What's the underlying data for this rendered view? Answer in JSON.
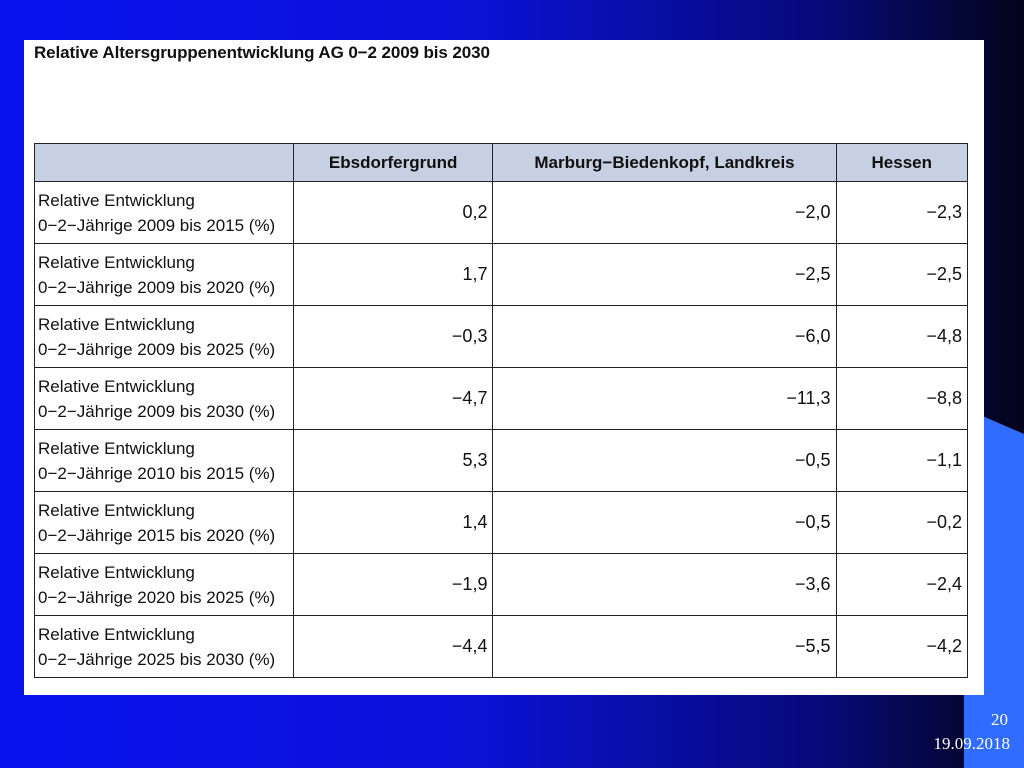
{
  "slide": {
    "title": "Relative Altersgruppenentwicklung AG 0−2 2009 bis 2030",
    "page_number": "20",
    "date": "19.09.2018"
  },
  "table": {
    "headers": [
      "",
      "Ebsdorfergrund",
      "Marburg−Biedenkopf, Landkreis",
      "Hessen"
    ],
    "rows": [
      {
        "label_line1": "Relative Entwicklung",
        "label_line2": "0−2−Jährige 2009 bis 2015 (%)",
        "values": [
          "0,2",
          "−2,0",
          "−2,3"
        ]
      },
      {
        "label_line1": "Relative Entwicklung",
        "label_line2": "0−2−Jährige 2009 bis 2020 (%)",
        "values": [
          "1,7",
          "−2,5",
          "−2,5"
        ]
      },
      {
        "label_line1": "Relative Entwicklung",
        "label_line2": "0−2−Jährige 2009 bis 2025 (%)",
        "values": [
          "−0,3",
          "−6,0",
          "−4,8"
        ]
      },
      {
        "label_line1": "Relative Entwicklung",
        "label_line2": "0−2−Jährige 2009 bis 2030 (%)",
        "values": [
          "−4,7",
          "−11,3",
          "−8,8"
        ]
      },
      {
        "label_line1": "Relative Entwicklung",
        "label_line2": "0−2−Jährige 2010 bis 2015 (%)",
        "values": [
          "5,3",
          "−0,5",
          "−1,1"
        ]
      },
      {
        "label_line1": "Relative Entwicklung",
        "label_line2": "0−2−Jährige 2015 bis 2020 (%)",
        "values": [
          "1,4",
          "−0,5",
          "−0,2"
        ]
      },
      {
        "label_line1": "Relative Entwicklung",
        "label_line2": "0−2−Jährige 2020 bis 2025 (%)",
        "values": [
          "−1,9",
          "−3,6",
          "−2,4"
        ]
      },
      {
        "label_line1": "Relative Entwicklung",
        "label_line2": "0−2−Jährige 2025 bis 2030 (%)",
        "values": [
          "−4,4",
          "−5,5",
          "−4,2"
        ]
      }
    ]
  },
  "colors": {
    "background_left": "#0a12f0",
    "background_right": "#03041a",
    "accent_shape": "#2f6cff",
    "header_fill": "#c7cfe2"
  }
}
